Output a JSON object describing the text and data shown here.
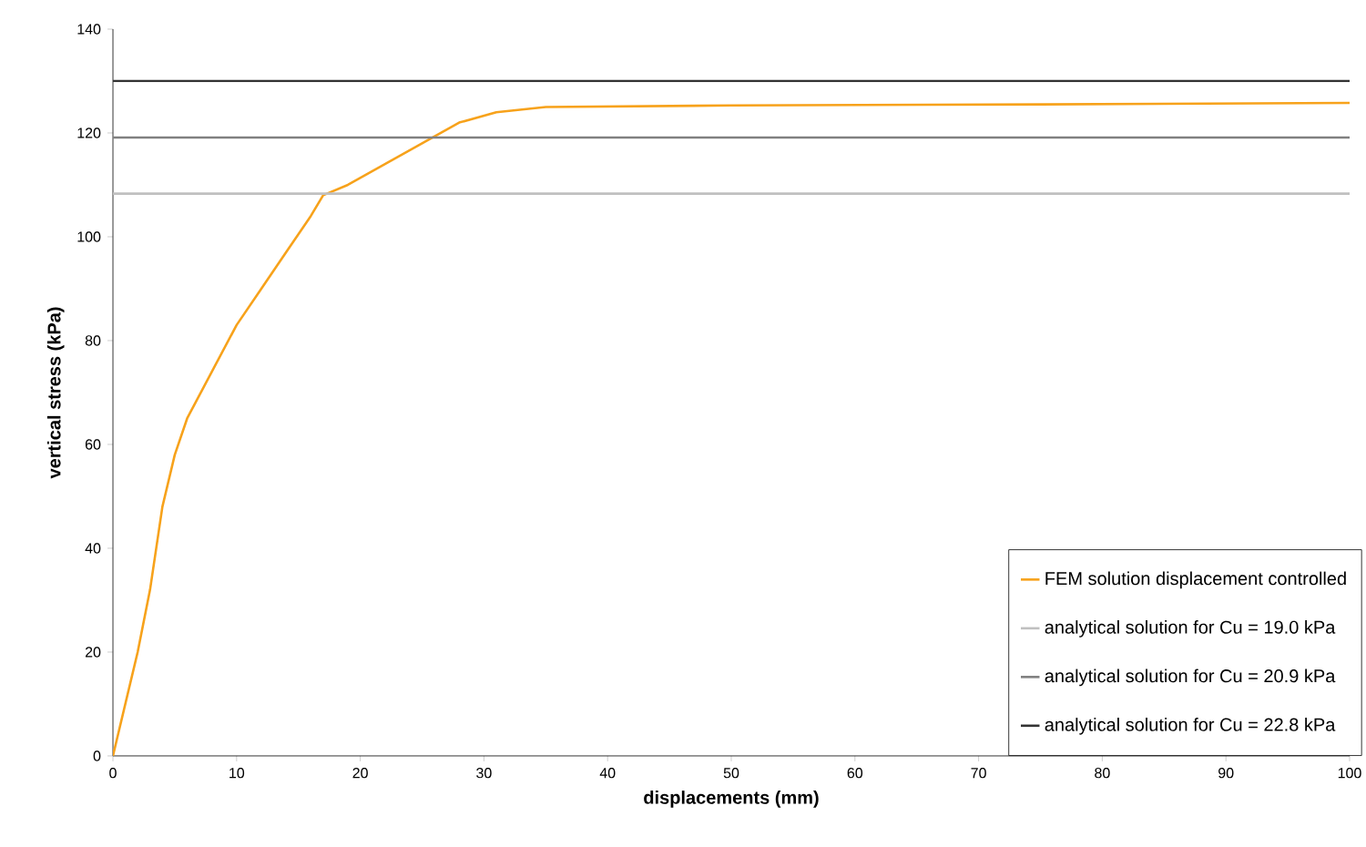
{
  "chart_data": {
    "type": "line",
    "xlabel": "displacements (mm)",
    "ylabel": "vertical stress (kPa)",
    "xlim": [
      0,
      100
    ],
    "ylim": [
      0,
      140
    ],
    "xticks": [
      0,
      10,
      20,
      30,
      40,
      50,
      60,
      70,
      80,
      90,
      100
    ],
    "yticks": [
      0,
      20,
      40,
      60,
      80,
      100,
      120,
      140
    ],
    "grid": false,
    "legend": "bottom right",
    "marker": "none",
    "line_style": "solid",
    "series": [
      {
        "name": "FEM solution displacement controlled",
        "color": "#f7a21b",
        "x": [
          0,
          2,
          3,
          4,
          5,
          6,
          8,
          10,
          12,
          14,
          16,
          17,
          19,
          22,
          25,
          28,
          31,
          35,
          50,
          75,
          100
        ],
        "values": [
          0,
          20,
          32,
          48,
          58,
          65,
          74,
          83,
          90,
          97,
          104,
          108,
          110,
          114,
          118,
          122,
          124,
          125,
          125.3,
          125.5,
          125.8
        ]
      },
      {
        "name": "analytical solution for Cu = 19.0 kPa",
        "color": "#c0c0c0",
        "x": [
          0,
          100
        ],
        "values": [
          108.3,
          108.3
        ]
      },
      {
        "name": "analytical solution for Cu = 20.9 kPa",
        "color": "#808080",
        "x": [
          0,
          100
        ],
        "values": [
          119.1,
          119.1
        ]
      },
      {
        "name": "analytical solution for Cu = 22.8 kPa",
        "color": "#333333",
        "x": [
          0,
          100
        ],
        "values": [
          130,
          130
        ]
      }
    ]
  }
}
